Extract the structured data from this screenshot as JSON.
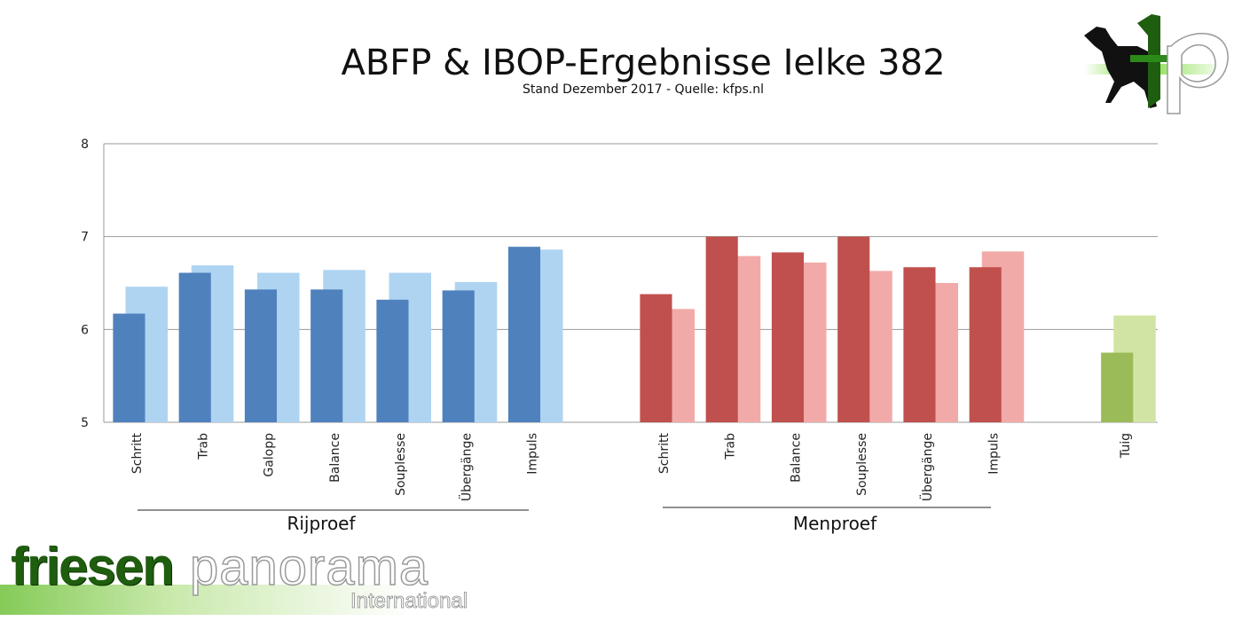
{
  "header": {
    "title": "ABFP & IBOP-Ergebnisse Ielke 382",
    "subtitle": "Stand Dezember 2017 - Quelle: kfps.nl"
  },
  "logos": {
    "top_right_text": "fp",
    "bottom_left_part1": "friesen",
    "bottom_left_part2": "panorama",
    "bottom_left_part3": "International"
  },
  "chart_data": {
    "type": "bar",
    "ylim": [
      5,
      8
    ],
    "yticks": [
      5,
      6,
      7,
      8
    ],
    "grid": true,
    "groups": [
      {
        "name": "Rijproef",
        "color": "#4f81bd",
        "color_light": "#aed4f2",
        "categories": [
          "Schritt",
          "Trab",
          "Galopp",
          "Balance",
          "Souplesse",
          "Übergänge",
          "Impuls"
        ],
        "values": [
          6.17,
          6.61,
          6.43,
          6.43,
          6.32,
          6.42,
          6.89
        ],
        "values_light": [
          6.46,
          6.69,
          6.61,
          6.64,
          6.61,
          6.51,
          6.86
        ]
      },
      {
        "name": "Menproef",
        "color": "#c0504d",
        "color_light": "#f2aaa8",
        "categories": [
          "Schritt",
          "Trab",
          "Balance",
          "Souplesse",
          "Übergänge",
          "Impuls"
        ],
        "values": [
          6.38,
          7.0,
          6.83,
          7.0,
          6.67,
          6.67
        ],
        "values_light": [
          6.22,
          6.79,
          6.72,
          6.63,
          6.5,
          6.84
        ]
      },
      {
        "name": "",
        "color": "#9bbb59",
        "color_light": "#d2e4a3",
        "categories": [
          "Tuig"
        ],
        "values": [
          5.75
        ],
        "values_light": [
          6.15
        ]
      }
    ]
  }
}
